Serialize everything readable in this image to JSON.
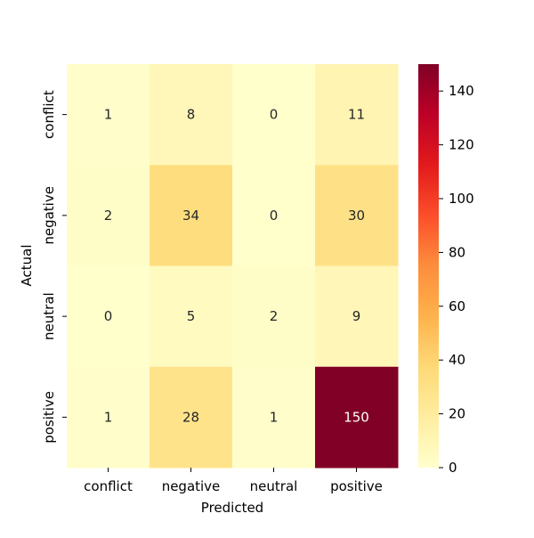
{
  "chart_data": {
    "type": "heatmap",
    "title": "",
    "xlabel": "Predicted",
    "ylabel": "Actual",
    "x_categories": [
      "conflict",
      "negative",
      "neutral",
      "positive"
    ],
    "y_categories": [
      "conflict",
      "negative",
      "neutral",
      "positive"
    ],
    "values": [
      [
        1,
        8,
        0,
        11
      ],
      [
        2,
        34,
        0,
        30
      ],
      [
        0,
        5,
        2,
        9
      ],
      [
        1,
        28,
        1,
        150
      ]
    ],
    "colorbar": {
      "min": 0,
      "max": 150,
      "ticks": [
        0,
        20,
        40,
        60,
        80,
        100,
        120,
        140
      ]
    },
    "colormap": "YlOrRd",
    "grid": false
  }
}
